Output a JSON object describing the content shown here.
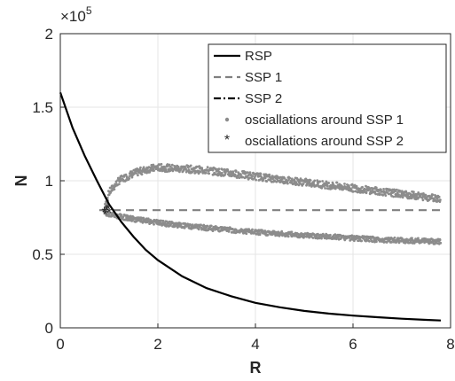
{
  "chart_data": {
    "type": "line",
    "xlabel": "R",
    "ylabel": "N",
    "xlim": [
      0,
      8
    ],
    "ylim": [
      0,
      200000
    ],
    "xticks": [
      "0",
      "2",
      "4",
      "6",
      "8"
    ],
    "yticks": [
      "0",
      "0.5",
      "1",
      "1.5",
      "2"
    ],
    "y_exponent": "×10",
    "y_exponent_power": "5",
    "grid": true,
    "legend_position": "top-right",
    "colors": {
      "rsp": "#000000",
      "ssp": "#808080",
      "scatter": "#8c8c8c"
    },
    "series": [
      {
        "name": "RSP",
        "style": "solid",
        "x": [
          0,
          0.25,
          0.5,
          0.75,
          1,
          1.25,
          1.5,
          1.75,
          2,
          2.5,
          3,
          3.5,
          4,
          4.5,
          5,
          5.5,
          6,
          6.5,
          7,
          7.5,
          7.8
        ],
        "y": [
          160000,
          136000,
          117000,
          100000,
          84000,
          72000,
          62000,
          53000,
          46000,
          35000,
          27000,
          21500,
          17000,
          14000,
          11500,
          9700,
          8300,
          7200,
          6200,
          5400,
          5000
        ]
      },
      {
        "name": "SSP 1",
        "style": "dashed",
        "x": [
          0.8,
          7.8
        ],
        "y": [
          80000,
          80000
        ]
      },
      {
        "name": "SSP 2",
        "style": "dashdot",
        "x": [],
        "y": []
      },
      {
        "name": "osciallations around SSP 1",
        "style": "dots",
        "upper_band": {
          "x": [
            0.9,
            1.0,
            1.2,
            1.5,
            1.8,
            2.0,
            2.3,
            2.6,
            3.0,
            3.5,
            4.0,
            4.5,
            5.0,
            5.5,
            6.0,
            6.5,
            7.0,
            7.5,
            7.8
          ],
          "y": [
            80000,
            92000,
            100000,
            105000,
            108000,
            109000,
            108500,
            108000,
            107000,
            105000,
            103000,
            101000,
            99000,
            97000,
            95000,
            93000,
            91000,
            89000,
            88000
          ]
        },
        "lower_band": {
          "x": [
            0.9,
            1.0,
            1.5,
            2.0,
            2.5,
            3.0,
            3.5,
            4.0,
            4.5,
            5.0,
            5.5,
            6.0,
            6.5,
            7.0,
            7.5,
            7.8
          ],
          "y": [
            79000,
            77000,
            74000,
            71500,
            69500,
            68000,
            66500,
            65000,
            64000,
            63000,
            62000,
            61000,
            60000,
            59500,
            59000,
            58500
          ]
        }
      },
      {
        "name": "osciallations around SSP 2",
        "style": "stars",
        "x": [
          0.9,
          0.95,
          1.0,
          0.92,
          0.98
        ],
        "y": [
          79000,
          80500,
          78500,
          77500,
          81000
        ]
      }
    ]
  }
}
